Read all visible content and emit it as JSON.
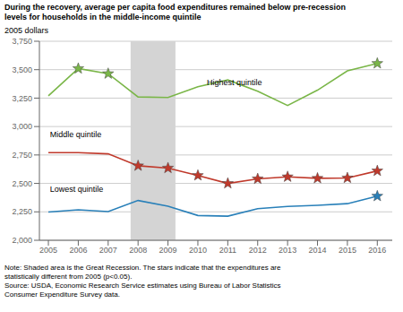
{
  "chart_data": {
    "type": "line",
    "title": [
      "During the recovery, average per capita food expenditures remained below pre-recession",
      "levels for households in the middle-income quintile"
    ],
    "ylabel": "2005 dollars",
    "x": [
      2005,
      2006,
      2007,
      2008,
      2009,
      2010,
      2011,
      2012,
      2013,
      2014,
      2015,
      2016
    ],
    "series": [
      {
        "name": "Highest quintile",
        "color": "#7ab648",
        "values": [
          3270,
          3510,
          3465,
          3260,
          3255,
          3350,
          3410,
          3310,
          3185,
          3320,
          3490,
          3555
        ],
        "star_x": [
          2006,
          2007,
          2016
        ]
      },
      {
        "name": "Middle quintile",
        "color": "#c0392b",
        "values": [
          2770,
          2770,
          2760,
          2655,
          2635,
          2570,
          2500,
          2540,
          2558,
          2545,
          2548,
          2610
        ],
        "star_x": [
          2008,
          2009,
          2010,
          2011,
          2012,
          2013,
          2014,
          2015,
          2016
        ]
      },
      {
        "name": "Lowest quintile",
        "color": "#2980b9",
        "values": [
          2248,
          2268,
          2252,
          2350,
          2300,
          2218,
          2212,
          2278,
          2298,
          2308,
          2322,
          2388
        ],
        "star_x": [
          2016
        ]
      }
    ],
    "shading": {
      "x": [
        2007.75,
        2009.25
      ],
      "color": "#d4d4d4"
    },
    "annotations": [
      {
        "text": "Highest quintile",
        "x": 2010.3,
        "y": 3385
      },
      {
        "text": "Middle quintile",
        "x": 2005.05,
        "y": 2930
      },
      {
        "text": "Lowest quintile",
        "x": 2005.05,
        "y": 2450
      }
    ],
    "xlim": [
      2004.7,
      2016.5
    ],
    "xticks": [
      2005,
      2006,
      2007,
      2008,
      2009,
      2010,
      2011,
      2012,
      2013,
      2014,
      2015,
      2016
    ],
    "ylim": [
      2000,
      3750
    ],
    "yticks": [
      {
        "value": 2000,
        "label": "2,000"
      },
      {
        "value": 2250,
        "label": "2,250"
      },
      {
        "value": 2500,
        "label": "2,500"
      },
      {
        "value": 2750,
        "label": "2,750"
      },
      {
        "value": 3000,
        "label": "3,000"
      },
      {
        "value": 3250,
        "label": "3,250"
      },
      {
        "value": 3500,
        "label": "3,500"
      },
      {
        "value": 3750,
        "label": "3,750"
      }
    ],
    "grid": true,
    "note": [
      "Note: Shaded area is the Great Recession. The stars indicate that the expenditures are",
      "statistically different from 2005 (p<0.05).",
      "Source: USDA, Economic Research Service estimates using Bureau of Labor Statistics",
      "Consumer Expenditure Survey data."
    ]
  }
}
